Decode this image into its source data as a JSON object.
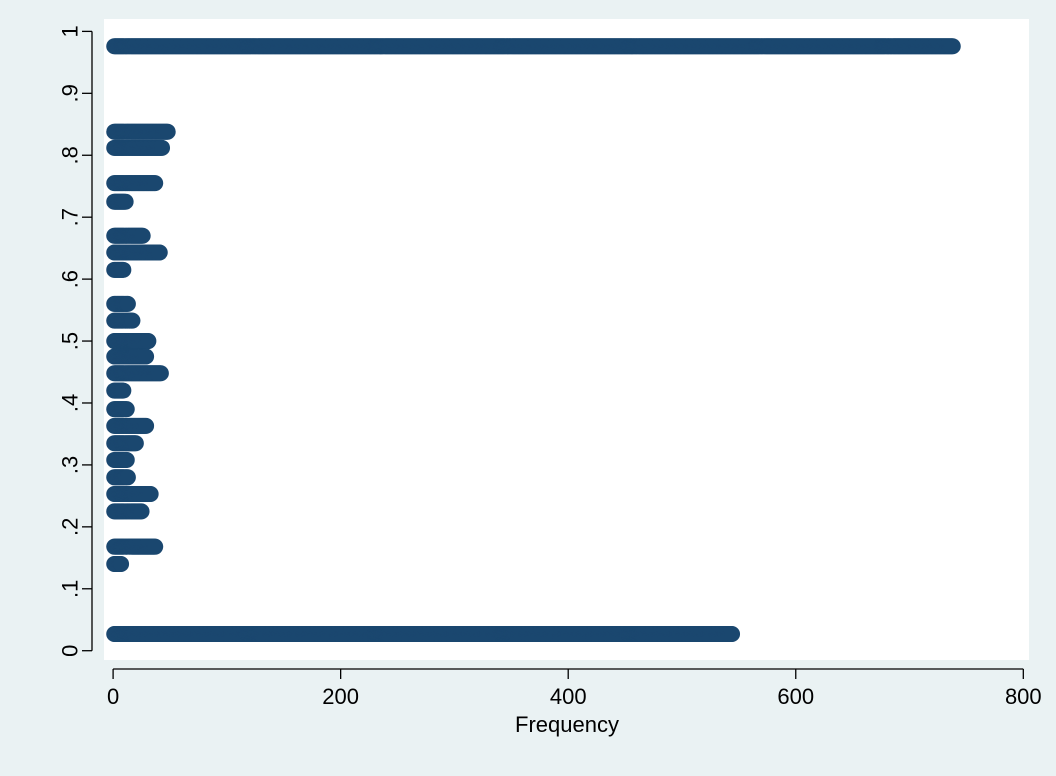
{
  "chart_data": {
    "type": "scatter",
    "title": "",
    "xlabel": "Frequency",
    "ylabel": "",
    "xlim": [
      -8,
      805
    ],
    "ylim": [
      -0.015,
      1.02
    ],
    "x_ticks": [
      {
        "value": 0,
        "label": "0"
      },
      {
        "value": 200,
        "label": "200"
      },
      {
        "value": 400,
        "label": "400"
      },
      {
        "value": 600,
        "label": "600"
      },
      {
        "value": 800,
        "label": "800"
      }
    ],
    "y_ticks": [
      {
        "value": 0,
        "label": "0"
      },
      {
        "value": 0.1,
        "label": ".1"
      },
      {
        "value": 0.2,
        "label": ".2"
      },
      {
        "value": 0.3,
        "label": ".3"
      },
      {
        "value": 0.4,
        "label": ".4"
      },
      {
        "value": 0.5,
        "label": ".5"
      },
      {
        "value": 0.6,
        "label": ".6"
      },
      {
        "value": 0.7,
        "label": ".7"
      },
      {
        "value": 0.8,
        "label": ".8"
      },
      {
        "value": 0.9,
        "label": ".9"
      },
      {
        "value": 1,
        "label": "1"
      }
    ],
    "grid": false,
    "legend": "none",
    "series": [
      {
        "marker_color": "#1a476f",
        "rows": [
          {
            "y": 0.976,
            "max_frequency": 738
          },
          {
            "y": 0.838,
            "max_frequency": 48
          },
          {
            "y": 0.812,
            "max_frequency": 43
          },
          {
            "y": 0.755,
            "max_frequency": 37
          },
          {
            "y": 0.725,
            "max_frequency": 11
          },
          {
            "y": 0.67,
            "max_frequency": 26
          },
          {
            "y": 0.643,
            "max_frequency": 41
          },
          {
            "y": 0.615,
            "max_frequency": 9
          },
          {
            "y": 0.56,
            "max_frequency": 13
          },
          {
            "y": 0.533,
            "max_frequency": 17
          },
          {
            "y": 0.5,
            "max_frequency": 31
          },
          {
            "y": 0.475,
            "max_frequency": 29
          },
          {
            "y": 0.448,
            "max_frequency": 42
          },
          {
            "y": 0.42,
            "max_frequency": 9
          },
          {
            "y": 0.39,
            "max_frequency": 12
          },
          {
            "y": 0.363,
            "max_frequency": 29
          },
          {
            "y": 0.335,
            "max_frequency": 20
          },
          {
            "y": 0.308,
            "max_frequency": 12
          },
          {
            "y": 0.28,
            "max_frequency": 13
          },
          {
            "y": 0.253,
            "max_frequency": 33
          },
          {
            "y": 0.225,
            "max_frequency": 25
          },
          {
            "y": 0.168,
            "max_frequency": 37
          },
          {
            "y": 0.14,
            "max_frequency": 7
          },
          {
            "y": 0.027,
            "max_frequency": 544
          }
        ]
      }
    ]
  },
  "colors": {
    "page_background": "#eaf2f3",
    "plot_background": "#ffffff",
    "marker": "#1a476f",
    "axis": "#000000"
  }
}
